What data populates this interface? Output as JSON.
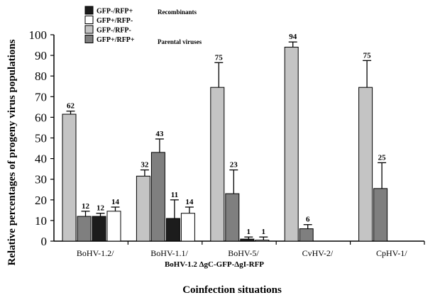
{
  "chart_data": {
    "type": "bar",
    "ylabel": "Relative percentages of progeny virus populations",
    "xlabel": "Coinfection situations",
    "subtitle": "BoHV-1.2 ΔgC-GFP-ΔgI-RFP",
    "ylim": [
      0,
      100
    ],
    "yticks": [
      0,
      10,
      20,
      30,
      40,
      50,
      60,
      70,
      80,
      90,
      100
    ],
    "categories": [
      "BoHV-1.2/",
      "BoHV-1.1/",
      "BoHV-5/",
      "CvHV-2/",
      "CpHV-1/"
    ],
    "legend": {
      "placement": "top-left",
      "group_recombinants": "Recombinants",
      "group_parental": "Parental viruses"
    },
    "series": [
      {
        "name": "GFP-/RFP+",
        "color": "#1c1c1c",
        "values": [
          12,
          11,
          1,
          null,
          null
        ],
        "errors": [
          1.5,
          9,
          1,
          null,
          null
        ],
        "labels": [
          "12",
          "11",
          "1",
          "",
          ""
        ]
      },
      {
        "name": "GFP+/RFP-",
        "color": "#ffffff",
        "values": [
          14.5,
          13.5,
          0.5,
          null,
          null
        ],
        "errors": [
          2,
          3,
          1.5,
          null,
          null
        ],
        "labels": [
          "14",
          "14",
          "1",
          "",
          ""
        ]
      },
      {
        "name": "GFP-/RFP-",
        "color": "#c4c4c4",
        "values": [
          61.5,
          31.5,
          74.5,
          94,
          74.5
        ],
        "errors": [
          1.5,
          3,
          12,
          2.5,
          13
        ],
        "labels": [
          "62",
          "32",
          "75",
          "94",
          "75"
        ]
      },
      {
        "name": "GFP+/RFP+",
        "color": "#7f7f7f",
        "values": [
          12,
          43,
          23,
          6,
          25.5
        ],
        "errors": [
          2.5,
          6.5,
          11.5,
          2,
          12.5
        ],
        "labels": [
          "12",
          "43",
          "23",
          "6",
          "25"
        ]
      }
    ]
  }
}
